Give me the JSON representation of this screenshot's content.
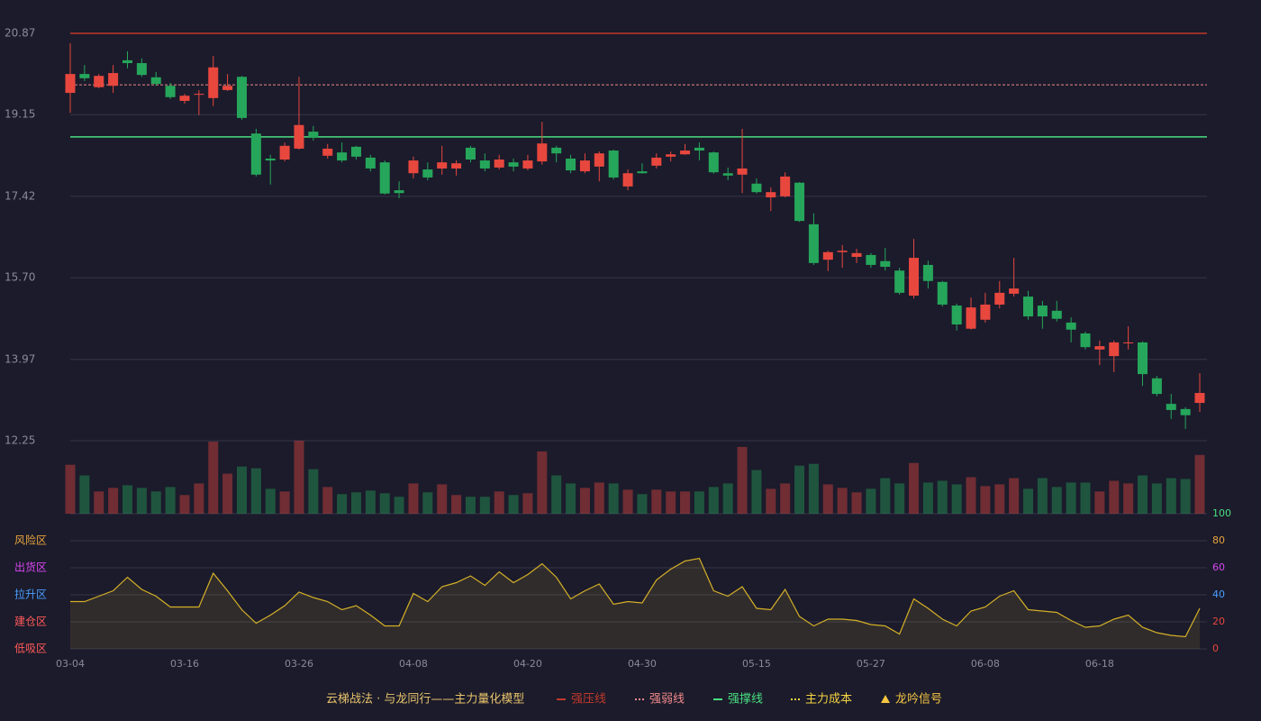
{
  "chart_data": {
    "type": "candlestick",
    "legend_title": "云梯战法 · 与龙同行——主力量化模型",
    "categories": [
      "03-04",
      null,
      null,
      null,
      null,
      null,
      null,
      null,
      "03-16",
      null,
      null,
      null,
      null,
      null,
      null,
      null,
      "03-26",
      null,
      null,
      null,
      null,
      null,
      null,
      null,
      "04-08",
      null,
      null,
      null,
      null,
      null,
      null,
      null,
      "04-20",
      null,
      null,
      null,
      null,
      null,
      null,
      null,
      "04-30",
      null,
      null,
      null,
      null,
      null,
      null,
      null,
      "05-15",
      null,
      null,
      null,
      null,
      null,
      null,
      null,
      "05-27",
      null,
      null,
      null,
      null,
      null,
      null,
      null,
      "06-08",
      null,
      null,
      null,
      null,
      null,
      null,
      null,
      "06-18",
      null,
      null,
      null,
      null,
      null,
      null,
      null
    ],
    "open": [
      19.61,
      20.01,
      19.73,
      19.76,
      20.3,
      20.24,
      19.94,
      19.76,
      19.44,
      19.57,
      19.5,
      19.67,
      19.95,
      18.75,
      18.22,
      18.2,
      18.43,
      18.79,
      18.28,
      18.35,
      18.47,
      18.24,
      18.14,
      17.55,
      17.91,
      17.99,
      18.01,
      18.01,
      18.45,
      18.18,
      18.03,
      18.14,
      18.01,
      18.16,
      18.45,
      18.22,
      17.95,
      18.05,
      18.39,
      17.63,
      17.95,
      18.07,
      18.26,
      18.31,
      18.45,
      18.35,
      17.91,
      17.88,
      17.69,
      17.4,
      17.42,
      17.71,
      16.83,
      16.08,
      16.24,
      16.14,
      16.18,
      16.05,
      15.85,
      15.32,
      15.97,
      15.61,
      15.11,
      14.62,
      14.81,
      15.13,
      15.36,
      15.3,
      15.11,
      15.0,
      14.75,
      14.52,
      14.18,
      14.04,
      14.31,
      14.33,
      13.57,
      13.03,
      12.92,
      13.05
    ],
    "high": [
      20.66,
      20.2,
      20.01,
      20.2,
      20.49,
      20.34,
      20.05,
      19.82,
      19.59,
      19.67,
      20.39,
      20.01,
      19.97,
      18.85,
      18.3,
      18.56,
      19.95,
      18.91,
      18.53,
      18.56,
      18.49,
      18.3,
      18.18,
      17.74,
      18.26,
      18.14,
      18.49,
      18.18,
      18.49,
      18.33,
      18.3,
      18.22,
      18.3,
      19.0,
      18.49,
      18.3,
      18.33,
      18.37,
      18.41,
      17.99,
      18.12,
      18.33,
      18.37,
      18.53,
      18.56,
      18.37,
      18.03,
      18.85,
      17.8,
      17.61,
      17.93,
      17.72,
      17.06,
      16.27,
      16.39,
      16.31,
      16.22,
      16.33,
      15.91,
      16.52,
      16.06,
      15.63,
      15.15,
      15.28,
      15.38,
      15.63,
      16.12,
      15.42,
      15.21,
      15.21,
      14.86,
      14.56,
      14.37,
      14.37,
      14.67,
      14.35,
      13.62,
      13.24,
      12.96,
      13.68
    ],
    "low": [
      19.19,
      19.86,
      19.71,
      19.61,
      20.13,
      19.95,
      19.76,
      19.48,
      19.38,
      19.14,
      19.33,
      19.65,
      19.04,
      17.84,
      17.67,
      18.16,
      18.41,
      18.6,
      18.22,
      18.14,
      18.2,
      17.95,
      17.46,
      17.38,
      17.8,
      17.76,
      17.88,
      17.86,
      18.14,
      17.95,
      17.99,
      17.95,
      17.97,
      18.09,
      18.14,
      17.91,
      17.91,
      17.74,
      17.78,
      17.55,
      17.9,
      18.01,
      18.16,
      18.3,
      18.18,
      17.9,
      17.76,
      17.49,
      17.48,
      17.11,
      17.4,
      16.88,
      15.97,
      15.84,
      15.91,
      16.01,
      15.91,
      15.85,
      15.34,
      15.26,
      15.47,
      15.09,
      14.58,
      14.6,
      14.75,
      15.05,
      15.3,
      14.81,
      14.62,
      14.77,
      14.33,
      14.18,
      13.85,
      13.7,
      14.18,
      13.41,
      13.19,
      12.71,
      12.5,
      12.86
    ],
    "close": [
      20.01,
      19.92,
      19.97,
      20.03,
      20.24,
      19.99,
      19.8,
      19.52,
      19.55,
      19.59,
      20.15,
      19.76,
      19.08,
      17.88,
      18.18,
      18.49,
      18.93,
      18.66,
      18.43,
      18.18,
      18.26,
      18.01,
      17.48,
      17.49,
      18.18,
      17.82,
      18.14,
      18.12,
      18.2,
      18.01,
      18.2,
      18.05,
      18.18,
      18.54,
      18.33,
      17.97,
      18.18,
      18.33,
      17.82,
      17.91,
      17.91,
      18.24,
      18.31,
      18.39,
      18.39,
      17.93,
      17.86,
      18.01,
      17.51,
      17.51,
      17.84,
      16.9,
      16.01,
      16.24,
      16.27,
      16.22,
      15.97,
      15.93,
      15.38,
      16.12,
      15.63,
      15.13,
      14.71,
      15.07,
      15.13,
      15.38,
      15.47,
      14.88,
      14.88,
      14.83,
      14.6,
      14.23,
      14.25,
      14.33,
      14.33,
      13.66,
      13.24,
      12.9,
      12.79,
      13.26
    ],
    "volume": [
      55,
      43,
      25,
      29,
      32,
      29,
      25,
      30,
      21,
      34,
      81,
      45,
      53,
      51,
      28,
      25,
      82,
      50,
      30,
      22,
      24,
      26,
      23,
      19,
      34,
      24,
      33,
      21,
      19,
      19,
      25,
      21,
      23,
      70,
      43,
      34,
      29,
      35,
      34,
      27,
      22,
      27,
      25,
      25,
      25,
      30,
      34,
      75,
      49,
      28,
      34,
      54,
      56,
      33,
      29,
      24,
      28,
      40,
      34,
      57,
      35,
      37,
      33,
      41,
      31,
      33,
      40,
      28,
      40,
      30,
      35,
      35,
      25,
      37,
      34,
      43,
      34,
      40,
      39,
      66
    ],
    "up_color": "#e8473e",
    "down_color": "#26a65b",
    "ylim": [
      12.25,
      20.87
    ],
    "yticks": [
      20.87,
      19.15,
      17.42,
      {
        "value": 15.7,
        "label": "15.70"
      },
      13.97,
      12.25
    ],
    "grid": true,
    "levels": [
      {
        "name": "强压线",
        "value": 20.87,
        "color": "#c0392b",
        "style": "solid"
      },
      {
        "name": "强弱线",
        "value": 19.78,
        "color": "#f08a8a",
        "style": "dashed"
      },
      {
        "name": "强撑线",
        "value": 18.68,
        "color": "#4ade80",
        "style": "solid"
      }
    ],
    "legend_extra": [
      {
        "name": "主力成本",
        "color": "#f5d442",
        "style": "dashed"
      },
      {
        "name": "龙吟信号",
        "color": "#f5c542",
        "style": "triangle"
      }
    ],
    "indicator": {
      "values": [
        35,
        35,
        39,
        43,
        53,
        44,
        39,
        31,
        31,
        31,
        56,
        43,
        29,
        19,
        25,
        32,
        42,
        38,
        35,
        29,
        32,
        25,
        17,
        17,
        41,
        35,
        46,
        49,
        54,
        47,
        57,
        49,
        55,
        63,
        53,
        37,
        43,
        48,
        33,
        35,
        34,
        51,
        59,
        65,
        67,
        43,
        39,
        46,
        30,
        29,
        44,
        24,
        17,
        22,
        22,
        21,
        18,
        17,
        11,
        37,
        30,
        22,
        17,
        28,
        31,
        39,
        43,
        29,
        28,
        27,
        21,
        16,
        17,
        22,
        25,
        16,
        12,
        10,
        9,
        30
      ],
      "color": "#d4b027",
      "ylim": [
        0,
        100
      ],
      "yticks": [
        0,
        20,
        40,
        60,
        80,
        100
      ],
      "tick_colors": [
        "#e8473e",
        "#e8473e",
        "#4a9eff",
        "#d946ef",
        "#e8a33c",
        "#4ade80"
      ],
      "zones": [
        {
          "label": "风险区",
          "value": 80,
          "color": "#e8a33c"
        },
        {
          "label": "出货区",
          "value": 60,
          "color": "#d946ef"
        },
        {
          "label": "拉升区",
          "value": 40,
          "color": "#4a9eff"
        },
        {
          "label": "建仓区",
          "value": 20,
          "color": "#ff5a5a"
        },
        {
          "label": "低吸区",
          "value": 0,
          "color": "#ff5a5a"
        }
      ]
    }
  }
}
